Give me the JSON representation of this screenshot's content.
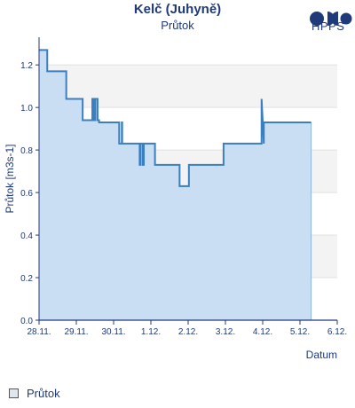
{
  "header": {
    "title": "Kelč (Juhyně)",
    "subtitle": "Průtok",
    "logo_text": "HPPS"
  },
  "legend": {
    "label": "Průtok"
  },
  "colors": {
    "line": "#3a7fc0",
    "fill": "#c6dcf1",
    "band": "#f3f3f3",
    "axis": "#1f3a7a",
    "text": "#1f3a7a"
  },
  "chart_data": {
    "type": "area",
    "title": "Kelč (Juhyně)",
    "subtitle": "Průtok",
    "xlabel": "Datum",
    "ylabel": "Průtok [m3s-1]",
    "x_ticks": [
      "28.11.",
      "29.11.",
      "30.11.",
      "1.12.",
      "2.12.",
      "3.12.",
      "4.12.",
      "5.12.",
      "6.12."
    ],
    "y_ticks": [
      "0.0",
      "0.2",
      "0.4",
      "0.6",
      "0.8",
      "1.0",
      "1.2"
    ],
    "ylim": [
      0,
      1.33
    ],
    "xlim": [
      0,
      8
    ],
    "grid": "alternating horizontal bands",
    "legend_position": "bottom-left",
    "series": [
      {
        "name": "Průtok",
        "x": [
          0,
          0.22,
          0.22,
          0.73,
          0.73,
          1.17,
          1.17,
          1.43,
          1.43,
          1.47,
          1.47,
          1.51,
          1.51,
          1.57,
          1.57,
          1.61,
          1.61,
          2.15,
          2.15,
          2.22,
          2.22,
          2.23,
          2.23,
          2.7,
          2.7,
          2.72,
          2.72,
          2.78,
          2.78,
          2.81,
          2.81,
          3.11,
          3.11,
          3.77,
          3.77,
          4.02,
          4.02,
          4.95,
          4.95,
          5.97,
          5.97,
          6.03,
          6.03,
          7.3
        ],
        "y": [
          1.27,
          1.27,
          1.17,
          1.17,
          1.04,
          1.04,
          0.94,
          0.94,
          1.04,
          1.04,
          0.94,
          0.94,
          1.04,
          1.04,
          0.94,
          0.94,
          0.93,
          0.93,
          0.83,
          0.83,
          0.93,
          0.93,
          0.83,
          0.83,
          0.73,
          0.73,
          0.83,
          0.83,
          0.73,
          0.73,
          0.83,
          0.83,
          0.73,
          0.73,
          0.63,
          0.63,
          0.73,
          0.73,
          0.83,
          0.83,
          1.04,
          0.83,
          0.93,
          0.93
        ]
      }
    ]
  }
}
